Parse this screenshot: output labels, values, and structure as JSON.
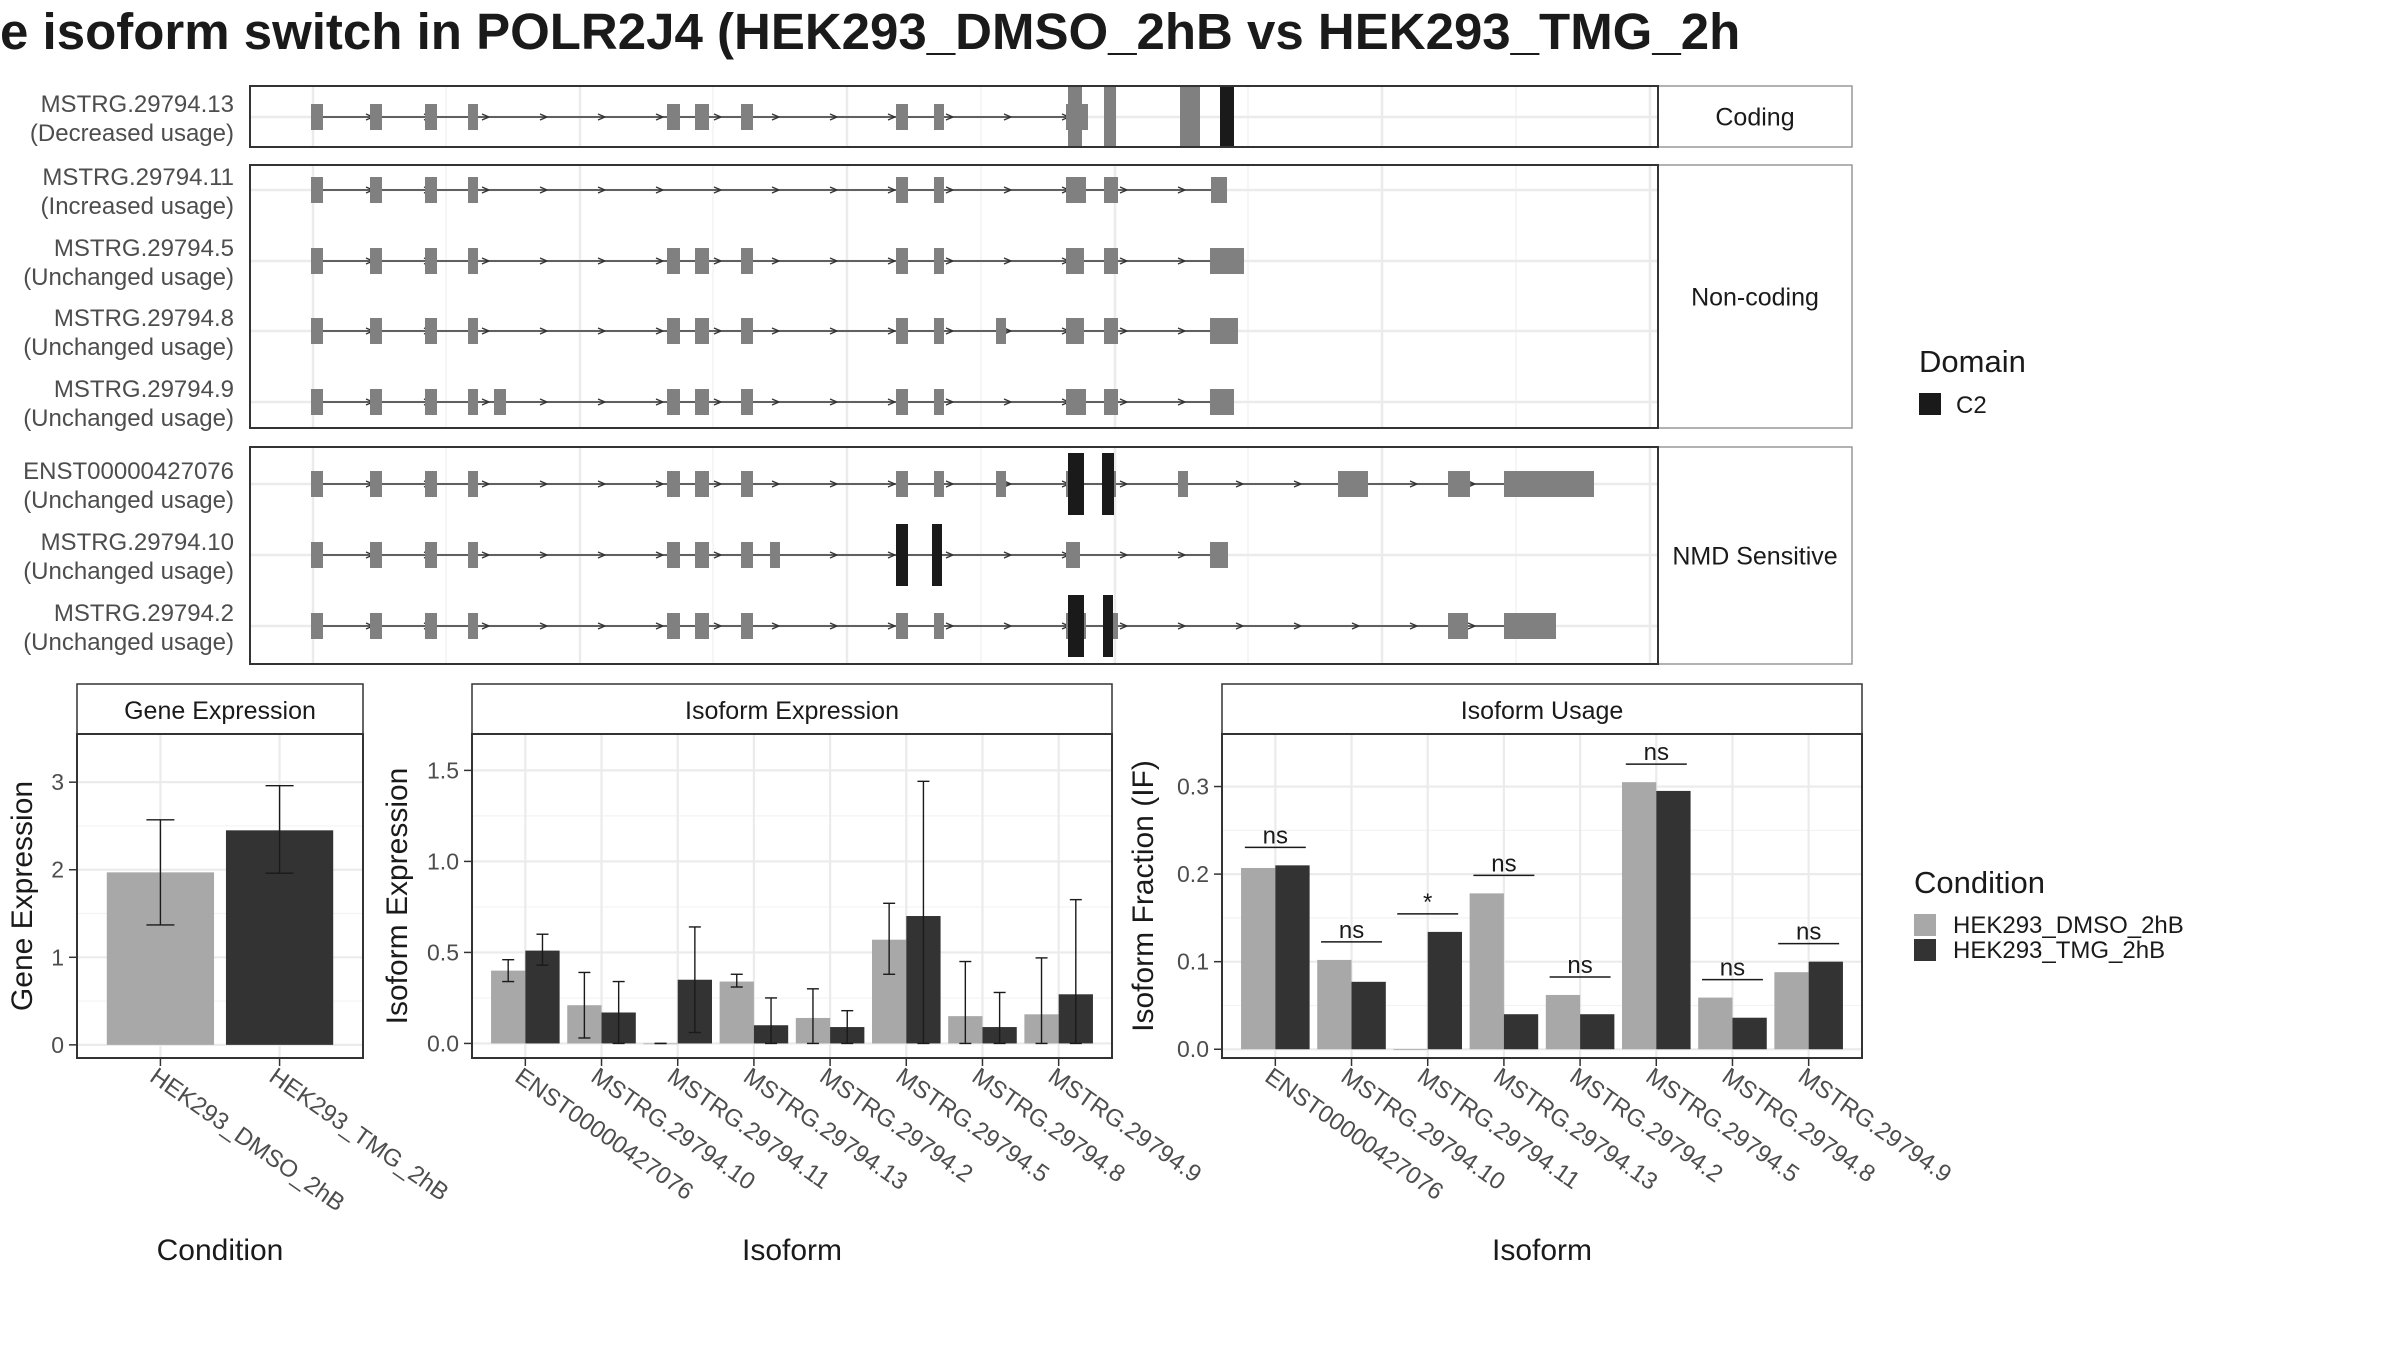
{
  "title": "e isoform switch in POLR2J4 (HEK293_DMSO_2hB vs HEK293_TMG_2h",
  "transcript_panel": {
    "sections": [
      {
        "label": "Coding",
        "rows": [
          {
            "id": "MSTRG.29794.13",
            "usage": "(Decreased usage)"
          }
        ]
      },
      {
        "label": "Non-coding",
        "rows": [
          {
            "id": "MSTRG.29794.11",
            "usage": "(Increased usage)"
          },
          {
            "id": "MSTRG.29794.5",
            "usage": "(Unchanged usage)"
          },
          {
            "id": "MSTRG.29794.8",
            "usage": "(Unchanged usage)"
          },
          {
            "id": "MSTRG.29794.9",
            "usage": "(Unchanged usage)"
          }
        ]
      },
      {
        "label": "NMD Sensitive",
        "rows": [
          {
            "id": "ENST00000427076",
            "usage": "(Unchanged usage)"
          },
          {
            "id": "MSTRG.29794.10",
            "usage": "(Unchanged usage)"
          },
          {
            "id": "MSTRG.29794.2",
            "usage": "(Unchanged usage)"
          }
        ]
      }
    ],
    "domain_legend": {
      "title": "Domain",
      "items": [
        {
          "label": "C2",
          "color": "#1a1a1a"
        }
      ]
    },
    "exon_color": "#808080"
  },
  "condition_legend": {
    "title": "Condition",
    "items": [
      {
        "label": "HEK293_DMSO_2hB",
        "color": "#a8a8a8"
      },
      {
        "label": "HEK293_TMG_2hB",
        "color": "#333333"
      }
    ]
  },
  "chart_data": [
    {
      "type": "bar",
      "title": "Gene Expression",
      "xlabel": "Condition",
      "ylabel": "Gene Expression",
      "categories": [
        "HEK293_DMSO_2hB",
        "HEK293_TMG_2hB"
      ],
      "values": [
        1.97,
        2.45
      ],
      "error_low": [
        1.37,
        1.96
      ],
      "error_high": [
        2.57,
        2.96
      ],
      "ylim": [
        -0.15,
        3.55
      ],
      "yticks": [
        0,
        1,
        2,
        3
      ],
      "grid": true
    },
    {
      "type": "bar",
      "title": "Isoform Expression",
      "xlabel": "Isoform",
      "ylabel": "Isoform Expression",
      "categories": [
        "ENST00000427076",
        "MSTRG.29794.10",
        "MSTRG.29794.11",
        "MSTRG.29794.13",
        "MSTRG.29794.2",
        "MSTRG.29794.5",
        "MSTRG.29794.8",
        "MSTRG.29794.9"
      ],
      "series": [
        {
          "name": "HEK293_DMSO_2hB",
          "values": [
            0.4,
            0.21,
            0.0,
            0.34,
            0.14,
            0.57,
            0.15,
            0.16
          ],
          "error_low": [
            0.34,
            0.03,
            0.0,
            0.31,
            0.0,
            0.38,
            0.0,
            0.0
          ],
          "error_high": [
            0.46,
            0.39,
            0.0,
            0.38,
            0.3,
            0.77,
            0.45,
            0.47
          ]
        },
        {
          "name": "HEK293_TMG_2hB",
          "values": [
            0.51,
            0.17,
            0.35,
            0.1,
            0.09,
            0.7,
            0.09,
            0.27
          ],
          "error_low": [
            0.43,
            0.0,
            0.06,
            0.0,
            0.0,
            0.0,
            0.0,
            0.0
          ],
          "error_high": [
            0.6,
            0.34,
            0.64,
            0.25,
            0.18,
            1.44,
            0.28,
            0.79
          ]
        }
      ],
      "ylim": [
        -0.08,
        1.7
      ],
      "yticks": [
        0.0,
        0.5,
        1.0,
        1.5
      ],
      "ytick_labels": [
        "0.0",
        "0.5",
        "1.0",
        "1.5"
      ],
      "grid": true
    },
    {
      "type": "bar",
      "title": "Isoform Usage",
      "xlabel": "Isoform",
      "ylabel": "Isoform Fraction (IF)",
      "categories": [
        "ENST00000427076",
        "MSTRG.29794.10",
        "MSTRG.29794.11",
        "MSTRG.29794.13",
        "MSTRG.29794.2",
        "MSTRG.29794.5",
        "MSTRG.29794.8",
        "MSTRG.29794.9"
      ],
      "series": [
        {
          "name": "HEK293_DMSO_2hB",
          "values": [
            0.207,
            0.102,
            0.0,
            0.178,
            0.062,
            0.305,
            0.059,
            0.088
          ]
        },
        {
          "name": "HEK293_TMG_2hB",
          "values": [
            0.21,
            0.077,
            0.134,
            0.04,
            0.04,
            0.295,
            0.036,
            0.1
          ]
        }
      ],
      "significance": [
        "ns",
        "ns",
        "*",
        "ns",
        "ns",
        "ns",
        "ns",
        "ns"
      ],
      "ylim": [
        -0.01,
        0.36
      ],
      "yticks": [
        0.0,
        0.1,
        0.2,
        0.3
      ],
      "ytick_labels": [
        "0.0",
        "0.1",
        "0.2",
        "0.3"
      ],
      "grid": true
    }
  ]
}
